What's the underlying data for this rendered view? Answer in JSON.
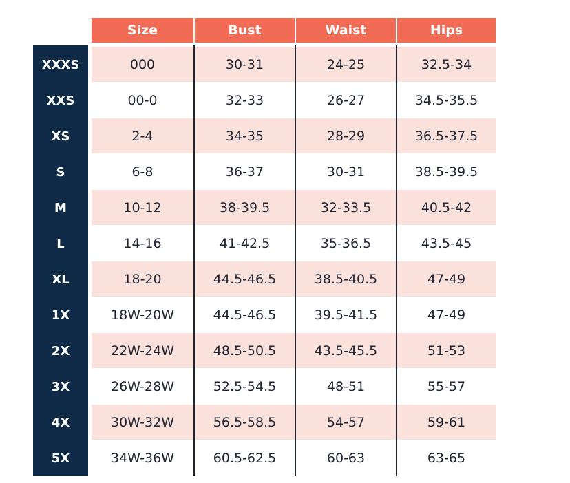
{
  "table": {
    "columns": [
      "Size",
      "Bust",
      "Waist",
      "Hips"
    ],
    "rows": [
      {
        "label": "XXXS",
        "cells": [
          "000",
          "30-31",
          "24-25",
          "32.5-34"
        ]
      },
      {
        "label": "XXS",
        "cells": [
          "00-0",
          "32-33",
          "26-27",
          "34.5-35.5"
        ]
      },
      {
        "label": "XS",
        "cells": [
          "2-4",
          "34-35",
          "28-29",
          "36.5-37.5"
        ]
      },
      {
        "label": "S",
        "cells": [
          "6-8",
          "36-37",
          "30-31",
          "38.5-39.5"
        ]
      },
      {
        "label": "M",
        "cells": [
          "10-12",
          "38-39.5",
          "32-33.5",
          "40.5-42"
        ]
      },
      {
        "label": "L",
        "cells": [
          "14-16",
          "41-42.5",
          "35-36.5",
          "43.5-45"
        ]
      },
      {
        "label": "XL",
        "cells": [
          "18-20",
          "44.5-46.5",
          "38.5-40.5",
          "47-49"
        ]
      },
      {
        "label": "1X",
        "cells": [
          "18W-20W",
          "44.5-46.5",
          "39.5-41.5",
          "47-49"
        ]
      },
      {
        "label": "2X",
        "cells": [
          "22W-24W",
          "48.5-50.5",
          "43.5-45.5",
          "51-53"
        ]
      },
      {
        "label": "3X",
        "cells": [
          "26W-28W",
          "52.5-54.5",
          "48-51",
          "55-57"
        ]
      },
      {
        "label": "4X",
        "cells": [
          "30W-32W",
          "56.5-58.5",
          "54-57",
          "59-61"
        ]
      },
      {
        "label": "5X",
        "cells": [
          "34W-36W",
          "60.5-62.5",
          "60-63",
          "63-65"
        ]
      }
    ]
  }
}
